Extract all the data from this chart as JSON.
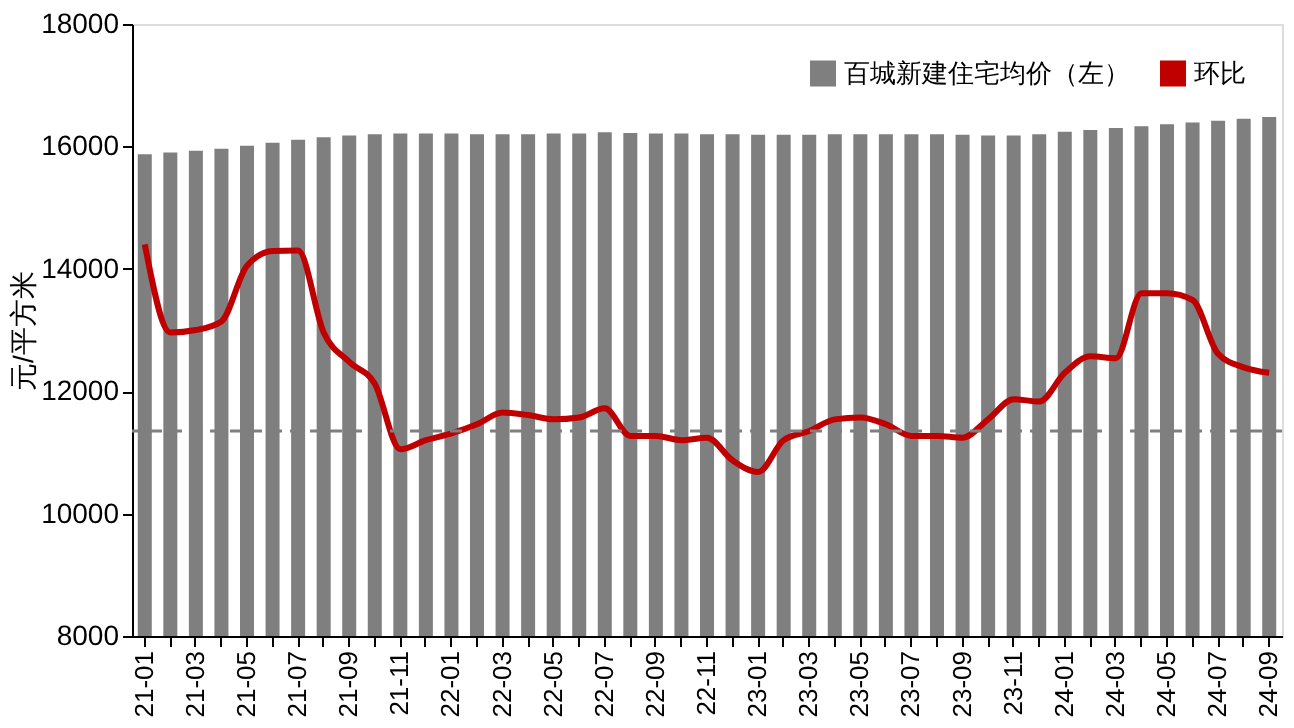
{
  "chart_data": {
    "type": "bar",
    "ylabel": "元/平方米",
    "categories": [
      "21-01",
      null,
      "21-03",
      null,
      "21-05",
      null,
      "21-07",
      null,
      "21-09",
      null,
      "21-11",
      null,
      "22-01",
      null,
      "22-03",
      null,
      "22-05",
      null,
      "22-07",
      null,
      "22-09",
      null,
      "22-11",
      null,
      "23-01",
      null,
      "23-03",
      null,
      "23-05",
      null,
      "23-07",
      null,
      "23-09",
      null,
      "23-11",
      null,
      "24-01",
      null,
      "24-03",
      null,
      "24-05",
      null,
      "24-07",
      null,
      "24-09"
    ],
    "series": [
      {
        "name": "百城新建住宅均价（左）",
        "color": "#7f7f7f",
        "values": [
          15870,
          15900,
          15930,
          15960,
          16010,
          16060,
          16110,
          16150,
          16180,
          16200,
          16210,
          16210,
          16210,
          16200,
          16200,
          16200,
          16210,
          16210,
          16230,
          16220,
          16210,
          16210,
          16200,
          16200,
          16190,
          16190,
          16190,
          16200,
          16200,
          16200,
          16200,
          16200,
          16190,
          16180,
          16180,
          16200,
          16240,
          16270,
          16300,
          16330,
          16360,
          16390,
          16420,
          16450,
          16480
        ]
      },
      {
        "name": "环比",
        "type": "line",
        "color": "#c00000",
        "values": [
          14400,
          12960,
          13000,
          13140,
          14050,
          14290,
          14300,
          12960,
          12480,
          12120,
          11050,
          11200,
          11310,
          11460,
          11650,
          11610,
          11540,
          11570,
          11720,
          11270,
          11270,
          11200,
          11240,
          10870,
          10680,
          11200,
          11350,
          11540,
          11570,
          11460,
          11270,
          11270,
          11240,
          11540,
          11870,
          11830,
          12300,
          12570,
          12540,
          13600,
          13600,
          13490,
          12610,
          12390,
          12300
        ]
      }
    ],
    "ylim": [
      8000,
      18000
    ],
    "yticks": [
      8000,
      10000,
      12000,
      14000,
      16000,
      18000
    ],
    "ref_lines": [
      {
        "axis": "y",
        "value": 11350,
        "color": "#7f7f7f",
        "line_style": "dashed"
      }
    ],
    "grid": false,
    "legend": "top right"
  }
}
